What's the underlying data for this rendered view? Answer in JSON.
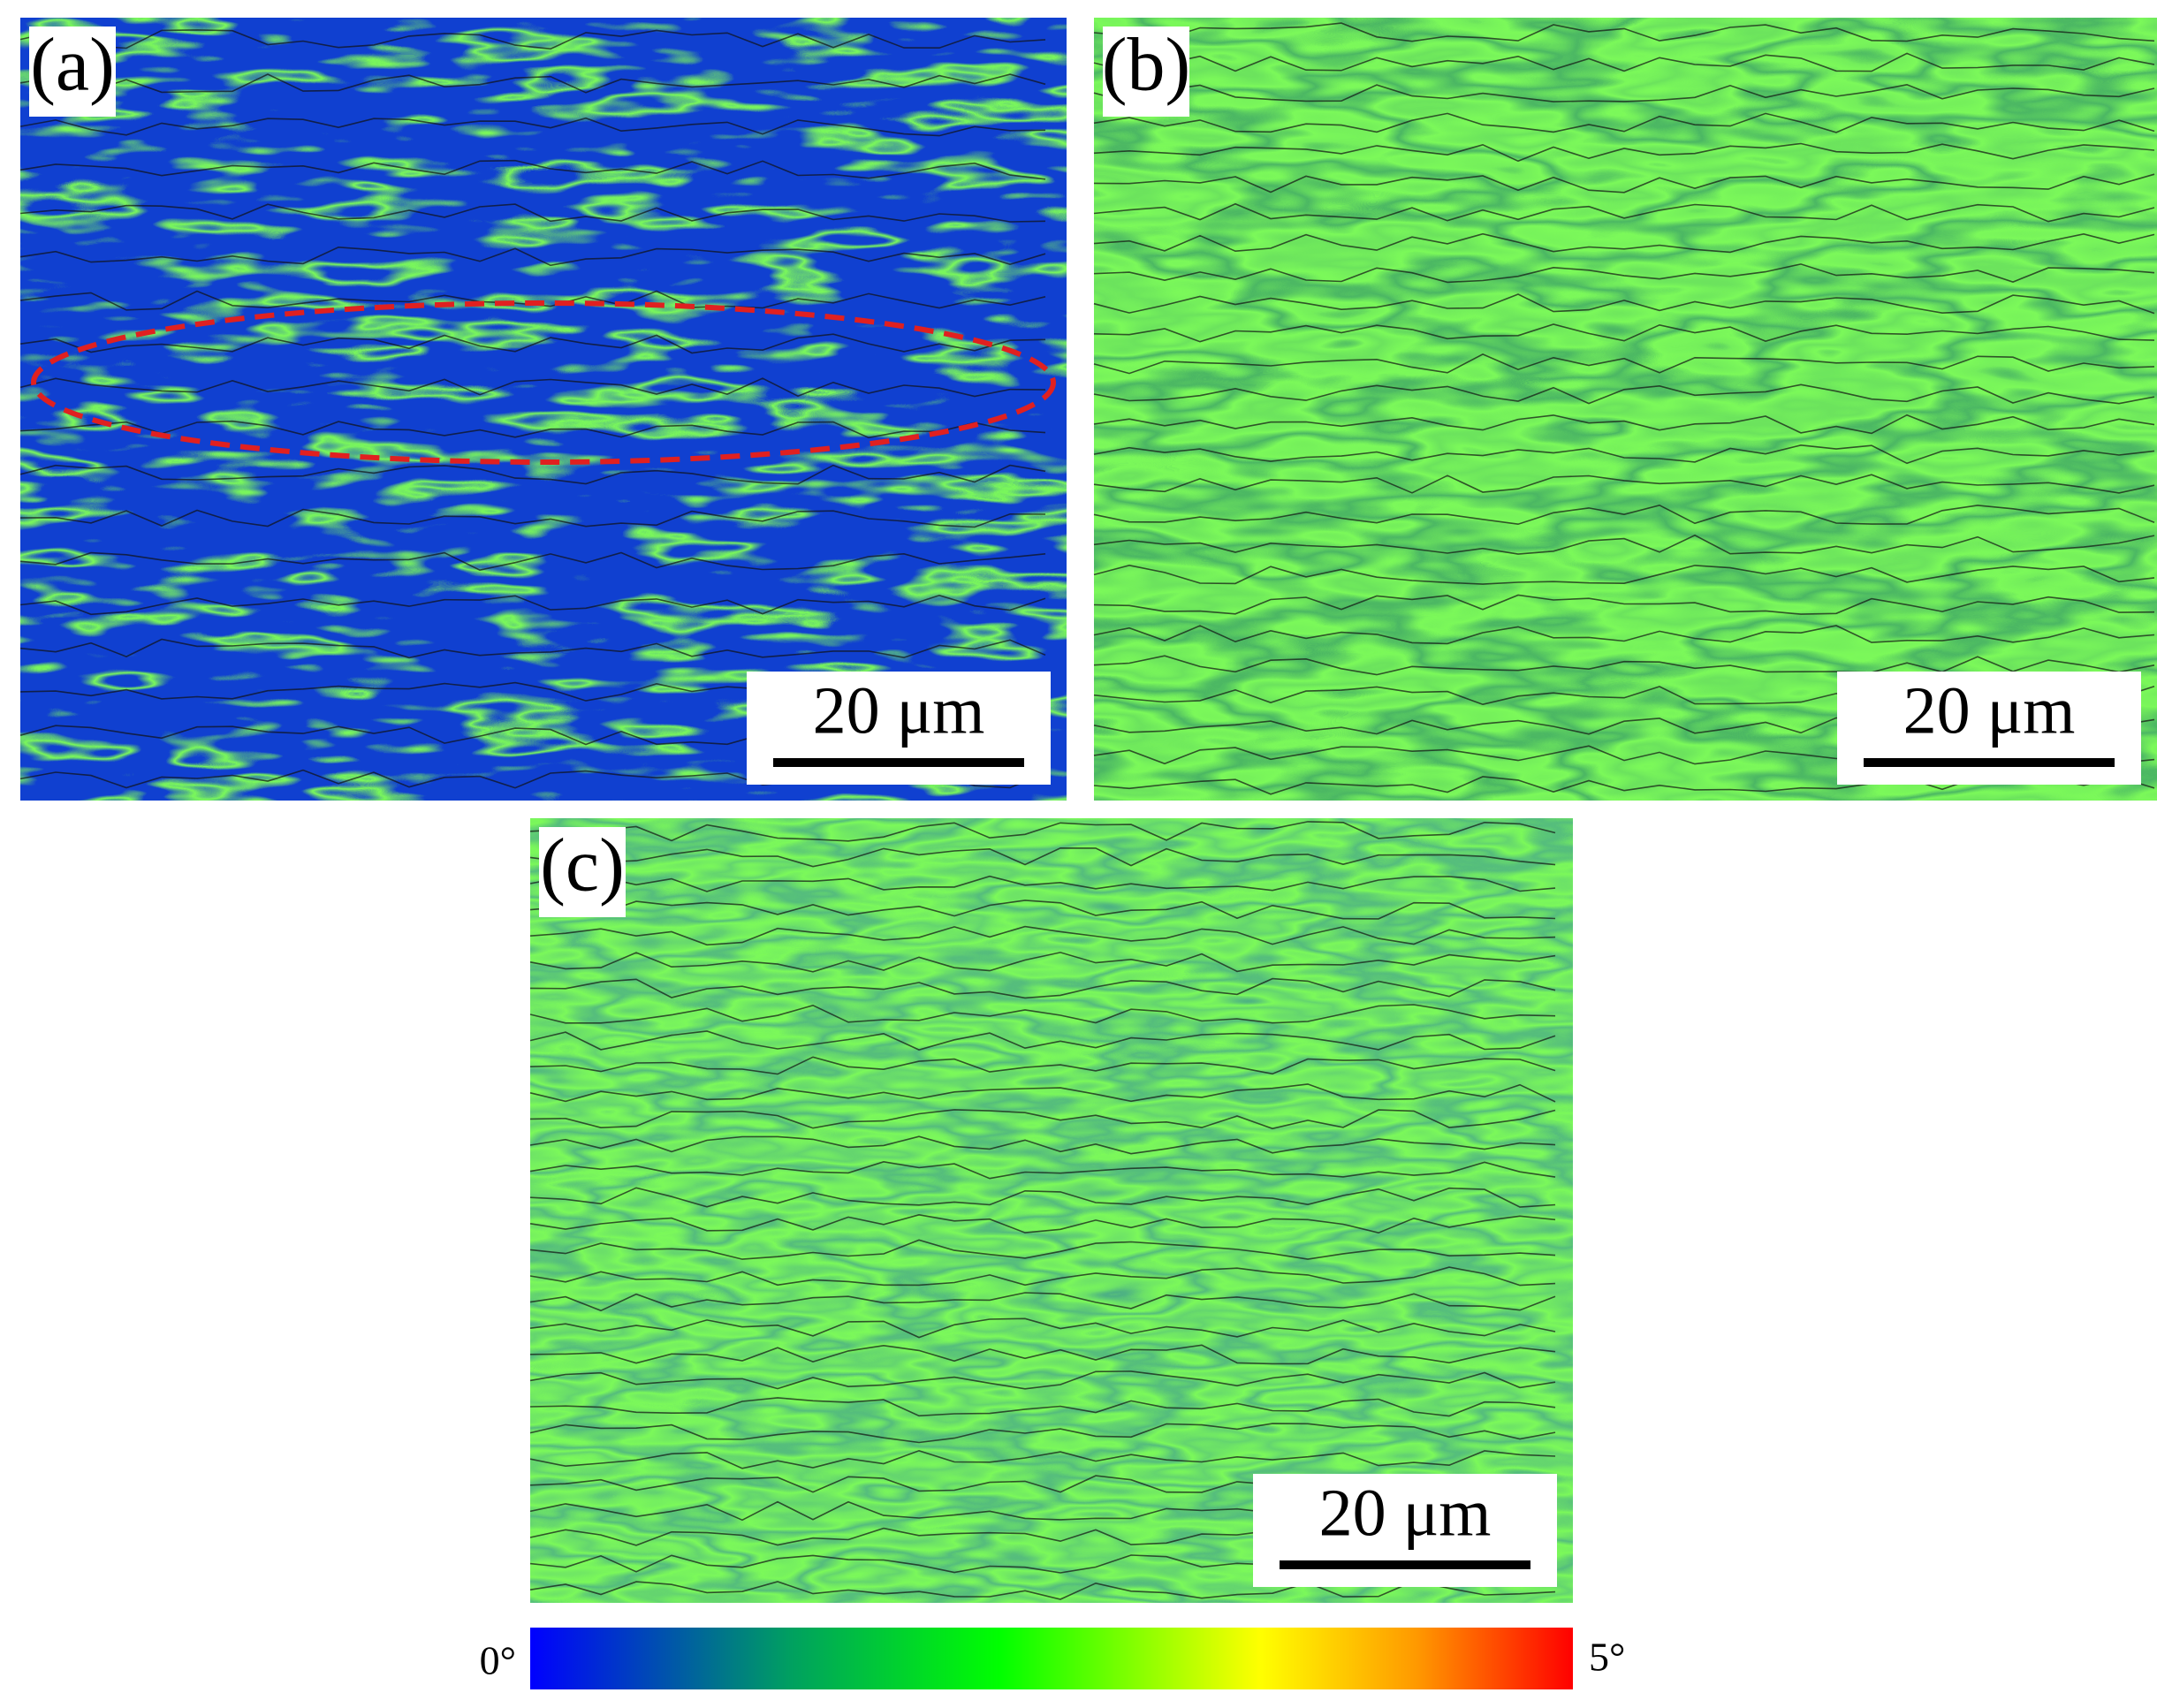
{
  "panels": [
    {
      "label": "(a)",
      "scale_bar": "20 μm"
    },
    {
      "label": "(b)",
      "scale_bar": "20 μm"
    },
    {
      "label": "(c)",
      "scale_bar": "20 μm"
    }
  ],
  "colorbar": {
    "min_label": "0°",
    "max_label": "5°"
  }
}
